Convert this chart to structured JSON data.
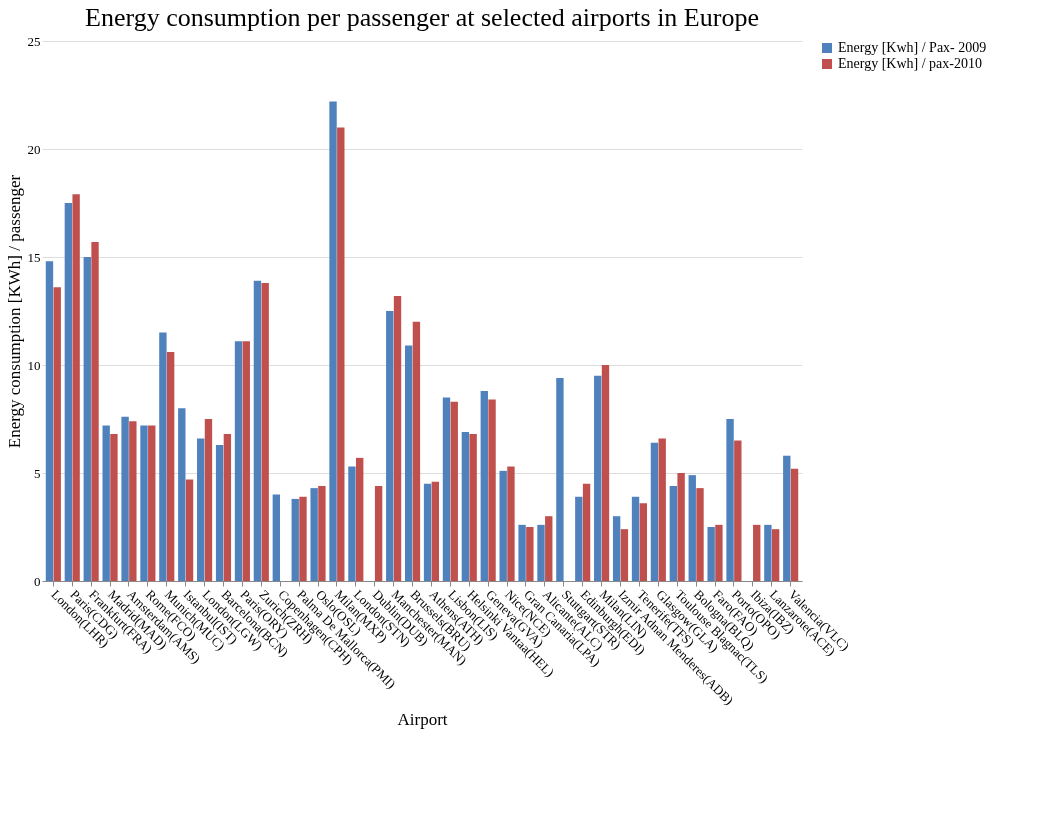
{
  "chart_data": {
    "type": "bar",
    "title": "Energy consumption per passenger at selected airports in Europe",
    "xlabel": "Airport",
    "ylabel": "Energy consumption [KWh] / passenger",
    "categories": [
      "London(LHR)",
      "Paris(CDG)",
      "Frankfurt(FRA)",
      "Madrid(MAD)",
      "Amsterdam(AMS)",
      "Rome(FCO)",
      "Munich(MUC)",
      "Istanbul(IST)",
      "London(LGW)",
      "Barcelona(BCN)",
      "Paris(ORY)",
      "Zurich(ZRH)",
      "Copenhagen(CPH)",
      "Palma De Mallorca(PMI)",
      "Oslo(OSL)",
      "Milan(MXP)",
      "London(STN)",
      "Dublin(DUB)",
      "Manchester(MAN)",
      "Brussels(BRU)",
      "Athens(ATH)",
      "Lisbon(LIS)",
      "Helsinki Vantaa(HEL)",
      "Geneva(GVA)",
      "Nice(NCE)",
      "Gran Canaria(LPA)",
      "Alicante(ALC)",
      "Stuttgart(STR)",
      "Edinburgh(EDI)",
      "Milan(LIN)",
      "Izmir Adnan Menderes(ADB)",
      "Tenerife(TFS)",
      "Glasgow(GLA)",
      "Toulouse Blagnac(TLS)",
      "Bologna(BLQ)",
      "Faro(FAO)",
      "Porto(OPO)",
      "Ibiza(IBZ)",
      "Lanzarote(ACE)",
      "Valencia(VLC)"
    ],
    "series": [
      {
        "name": "Energy [Kwh] / Pax- 2009",
        "color": "#4f81bd",
        "values": [
          14.8,
          17.5,
          15.0,
          7.2,
          7.6,
          7.2,
          11.5,
          8.0,
          6.6,
          6.3,
          11.1,
          13.9,
          4.0,
          3.8,
          4.3,
          22.2,
          5.3,
          0,
          12.5,
          10.9,
          4.5,
          8.5,
          6.9,
          8.8,
          5.1,
          2.6,
          2.6,
          9.4,
          3.9,
          9.5,
          3.0,
          3.9,
          6.4,
          4.4,
          4.9,
          2.5,
          7.5,
          0,
          2.6,
          5.8
        ]
      },
      {
        "name": "Energy [Kwh] / pax-2010",
        "color": "#c0504d",
        "values": [
          13.6,
          17.9,
          15.7,
          6.8,
          7.4,
          7.2,
          10.6,
          4.7,
          7.5,
          6.8,
          11.1,
          13.8,
          0,
          3.9,
          4.4,
          21.0,
          5.7,
          4.4,
          13.2,
          12.0,
          4.6,
          8.3,
          6.8,
          8.4,
          5.3,
          2.5,
          3.0,
          0,
          4.5,
          10.0,
          2.4,
          3.6,
          6.6,
          5.0,
          4.3,
          2.6,
          6.5,
          2.6,
          2.4,
          5.2
        ]
      }
    ],
    "ylim": [
      0,
      25
    ],
    "yticks": [
      0,
      5,
      10,
      15,
      20,
      25
    ],
    "grid": "y",
    "legend": "right"
  }
}
